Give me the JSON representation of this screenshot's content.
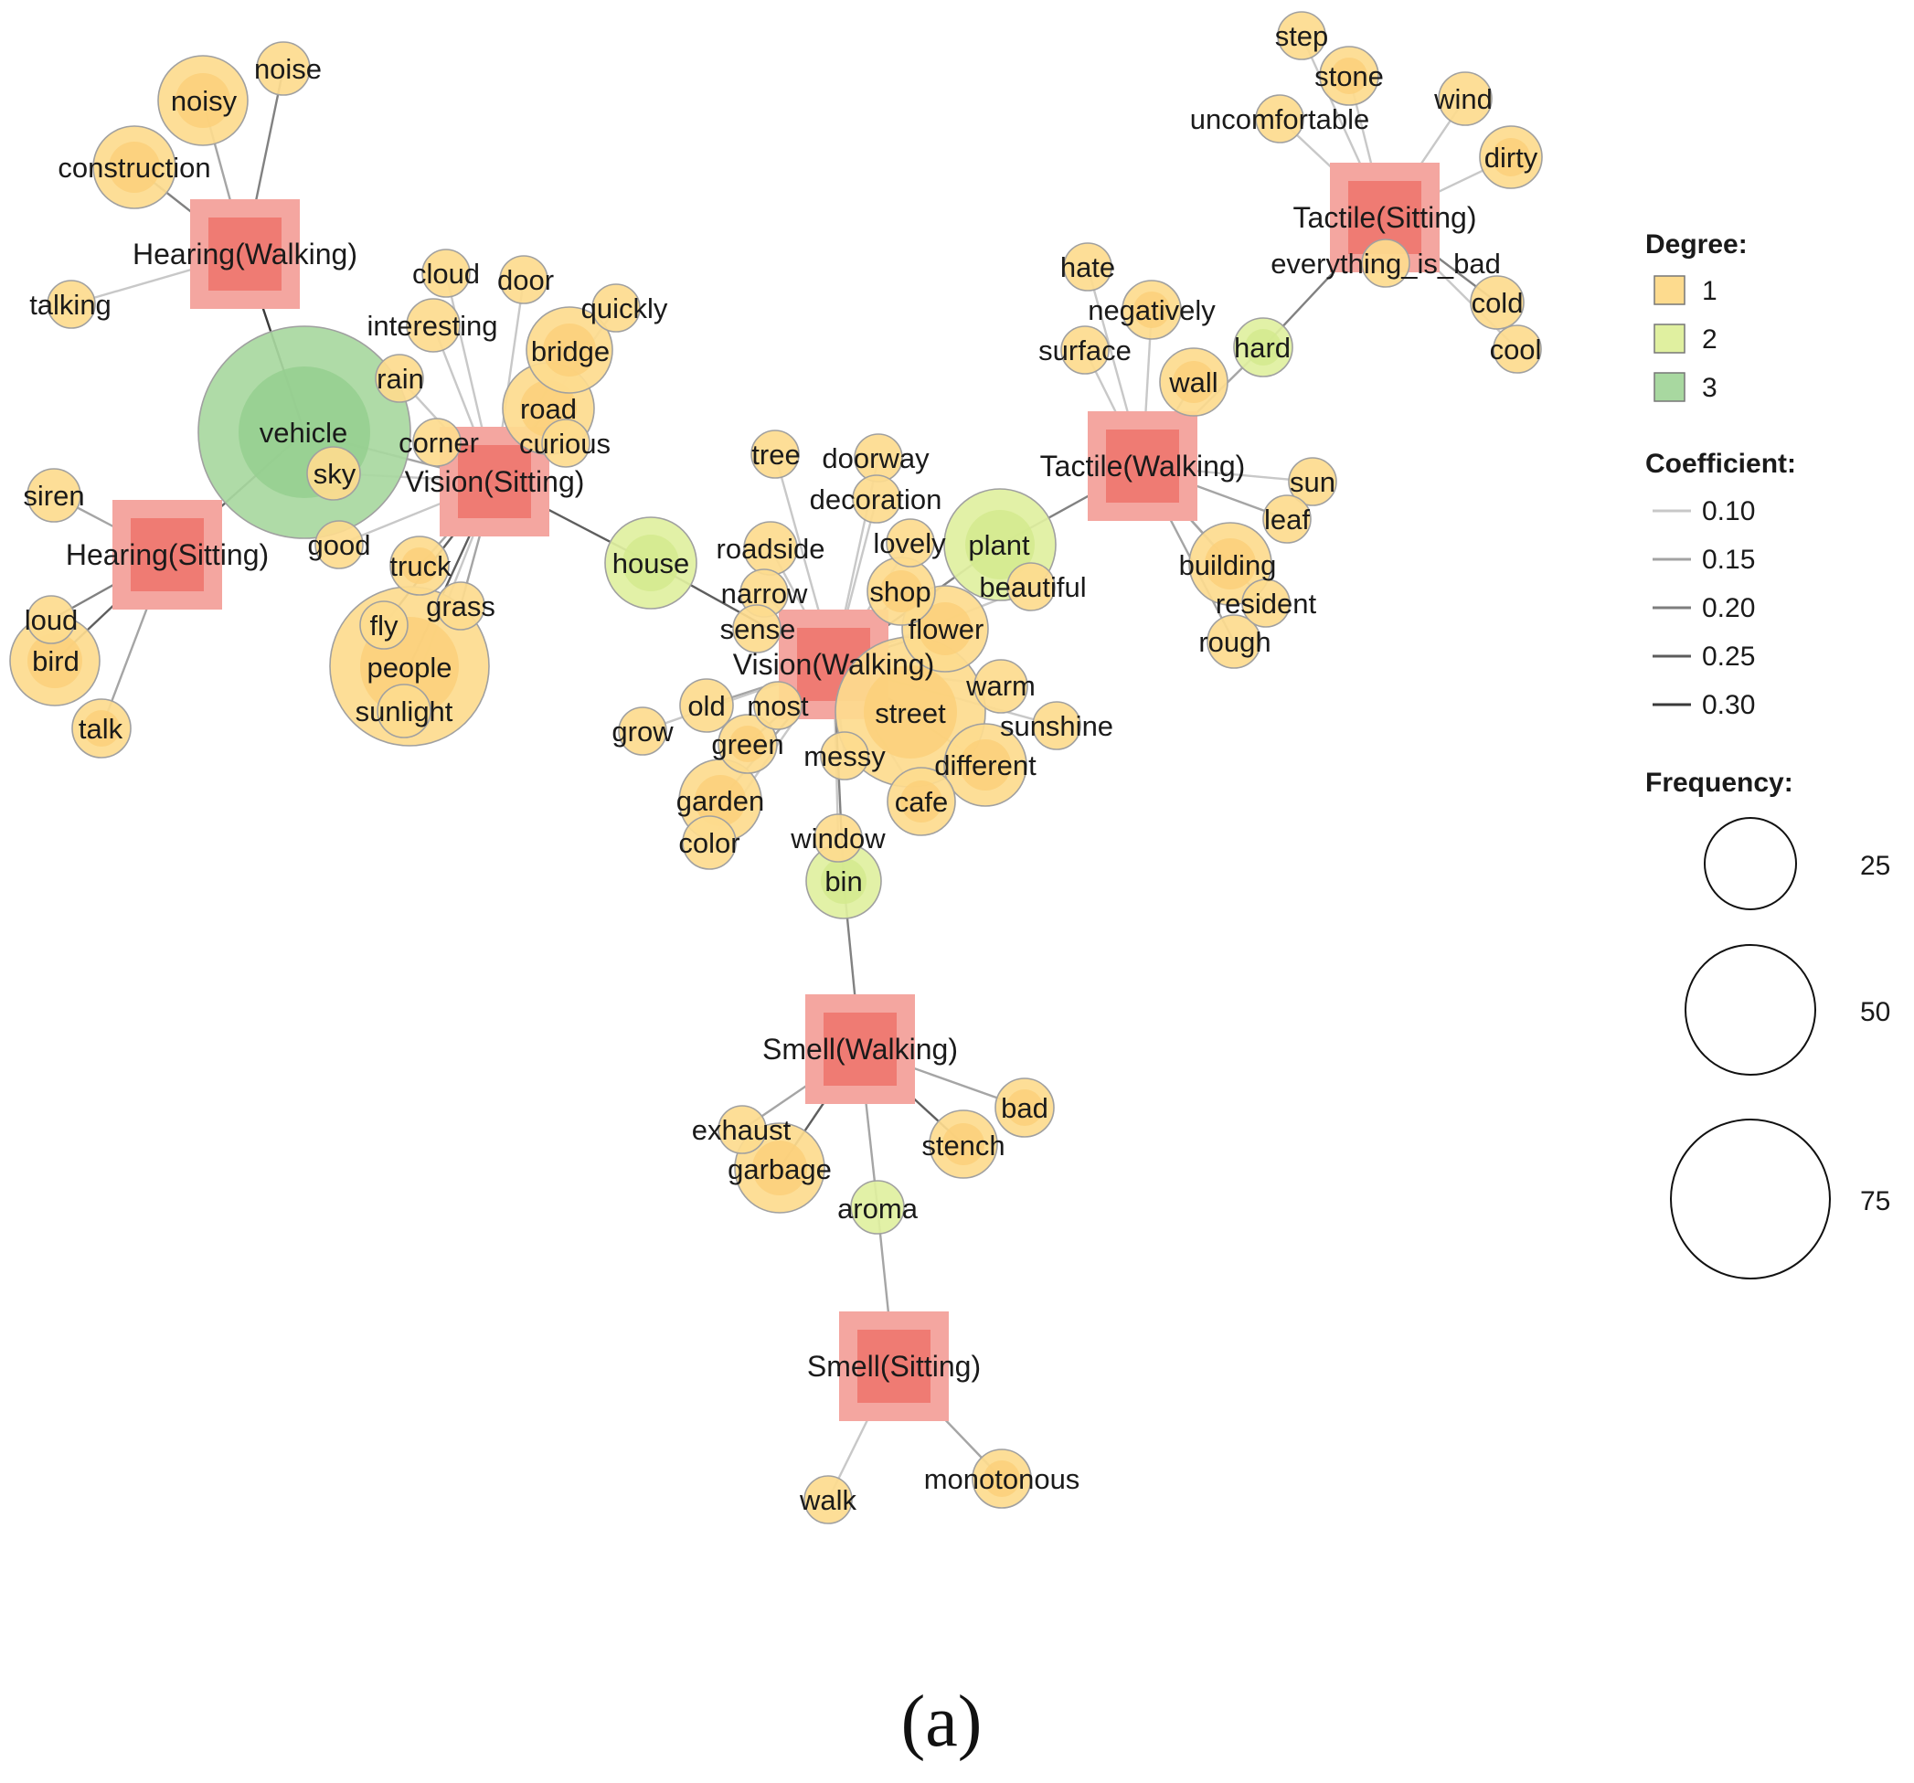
{
  "categories": [
    {
      "id": "hearing_walking",
      "label": "Hearing(Walking)"
    },
    {
      "id": "hearing_sitting",
      "label": "Hearing(Sitting)"
    },
    {
      "id": "vision_sitting",
      "label": "Vision(Sitting)"
    },
    {
      "id": "vision_walking",
      "label": "Vision(Walking)"
    },
    {
      "id": "tactile_walking",
      "label": "Tactile(Walking)"
    },
    {
      "id": "tactile_sitting",
      "label": "Tactile(Sitting)"
    },
    {
      "id": "smell_walking",
      "label": "Smell(Walking)"
    },
    {
      "id": "smell_sitting",
      "label": "Smell(Sitting)"
    }
  ],
  "words": [
    {
      "id": "noise",
      "label": "noise",
      "degree": 1,
      "frequency": 5
    },
    {
      "id": "noisy",
      "label": "noisy",
      "degree": 1,
      "frequency": 14
    },
    {
      "id": "construction",
      "label": "construction",
      "degree": 1,
      "frequency": 12
    },
    {
      "id": "talking",
      "label": "talking",
      "degree": 1,
      "frequency": 4
    },
    {
      "id": "vehicle",
      "label": "vehicle",
      "degree": 3,
      "frequency": 80
    },
    {
      "id": "siren",
      "label": "siren",
      "degree": 1,
      "frequency": 5
    },
    {
      "id": "loud",
      "label": "loud",
      "degree": 1,
      "frequency": 4
    },
    {
      "id": "bird",
      "label": "bird",
      "degree": 1,
      "frequency": 14
    },
    {
      "id": "talk",
      "label": "talk",
      "degree": 1,
      "frequency": 6
    },
    {
      "id": "cloud",
      "label": "cloud",
      "degree": 1,
      "frequency": 4
    },
    {
      "id": "door",
      "label": "door",
      "degree": 1,
      "frequency": 4
    },
    {
      "id": "quickly",
      "label": "quickly",
      "degree": 1,
      "frequency": 4
    },
    {
      "id": "interesting",
      "label": "interesting",
      "degree": 1,
      "frequency": 5
    },
    {
      "id": "bridge",
      "label": "bridge",
      "degree": 1,
      "frequency": 13
    },
    {
      "id": "rain",
      "label": "rain",
      "degree": 1,
      "frequency": 4
    },
    {
      "id": "road",
      "label": "road",
      "degree": 1,
      "frequency": 15
    },
    {
      "id": "corner",
      "label": "corner",
      "degree": 1,
      "frequency": 4
    },
    {
      "id": "curious",
      "label": "curious",
      "degree": 1,
      "frequency": 4
    },
    {
      "id": "sky",
      "label": "sky",
      "degree": 1,
      "frequency": 5
    },
    {
      "id": "good",
      "label": "good",
      "degree": 1,
      "frequency": 4
    },
    {
      "id": "truck",
      "label": "truck",
      "degree": 1,
      "frequency": 6
    },
    {
      "id": "grass",
      "label": "grass",
      "degree": 1,
      "frequency": 4
    },
    {
      "id": "fly",
      "label": "fly",
      "degree": 1,
      "frequency": 4
    },
    {
      "id": "people",
      "label": "people",
      "degree": 1,
      "frequency": 45
    },
    {
      "id": "sunlight",
      "label": "sunlight",
      "degree": 1,
      "frequency": 5
    },
    {
      "id": "house",
      "label": "house",
      "degree": 2,
      "frequency": 15
    },
    {
      "id": "tree",
      "label": "tree",
      "degree": 1,
      "frequency": 4
    },
    {
      "id": "doorway",
      "label": "doorway",
      "degree": 1,
      "frequency": 4
    },
    {
      "id": "decoration",
      "label": "decoration",
      "degree": 1,
      "frequency": 4
    },
    {
      "id": "roadside",
      "label": "roadside",
      "degree": 1,
      "frequency": 5
    },
    {
      "id": "lovely",
      "label": "lovely",
      "degree": 1,
      "frequency": 4
    },
    {
      "id": "plant",
      "label": "plant",
      "degree": 2,
      "frequency": 22
    },
    {
      "id": "narrow",
      "label": "narrow",
      "degree": 1,
      "frequency": 4
    },
    {
      "id": "shop",
      "label": "shop",
      "degree": 1,
      "frequency": 8
    },
    {
      "id": "beautiful",
      "label": "beautiful",
      "degree": 1,
      "frequency": 4
    },
    {
      "id": "sense",
      "label": "sense",
      "degree": 1,
      "frequency": 4
    },
    {
      "id": "flower",
      "label": "flower",
      "degree": 1,
      "frequency": 13
    },
    {
      "id": "warm",
      "label": "warm",
      "degree": 1,
      "frequency": 5
    },
    {
      "id": "old",
      "label": "old",
      "degree": 1,
      "frequency": 5
    },
    {
      "id": "most",
      "label": "most",
      "degree": 1,
      "frequency": 4
    },
    {
      "id": "street",
      "label": "street",
      "degree": 1,
      "frequency": 40
    },
    {
      "id": "sunshine",
      "label": "sunshine",
      "degree": 1,
      "frequency": 4
    },
    {
      "id": "grow",
      "label": "grow",
      "degree": 1,
      "frequency": 4
    },
    {
      "id": "green",
      "label": "green",
      "degree": 1,
      "frequency": 6
    },
    {
      "id": "messy",
      "label": "messy",
      "degree": 1,
      "frequency": 4
    },
    {
      "id": "different",
      "label": "different",
      "degree": 1,
      "frequency": 12
    },
    {
      "id": "garden",
      "label": "garden",
      "degree": 1,
      "frequency": 12
    },
    {
      "id": "cafe",
      "label": "cafe",
      "degree": 1,
      "frequency": 8
    },
    {
      "id": "color",
      "label": "color",
      "degree": 1,
      "frequency": 5
    },
    {
      "id": "window",
      "label": "window",
      "degree": 1,
      "frequency": 4
    },
    {
      "id": "bin",
      "label": "bin",
      "degree": 2,
      "frequency": 10
    },
    {
      "id": "hate",
      "label": "hate",
      "degree": 1,
      "frequency": 4
    },
    {
      "id": "negatively",
      "label": "negatively",
      "degree": 1,
      "frequency": 6
    },
    {
      "id": "surface",
      "label": "surface",
      "degree": 1,
      "frequency": 4
    },
    {
      "id": "hard",
      "label": "hard",
      "degree": 2,
      "frequency": 6
    },
    {
      "id": "wall",
      "label": "wall",
      "degree": 1,
      "frequency": 8
    },
    {
      "id": "sun",
      "label": "sun",
      "degree": 1,
      "frequency": 4
    },
    {
      "id": "leaf",
      "label": "leaf",
      "degree": 1,
      "frequency": 4
    },
    {
      "id": "building",
      "label": "building",
      "degree": 1,
      "frequency": 12
    },
    {
      "id": "resident",
      "label": "resident",
      "degree": 1,
      "frequency": 4
    },
    {
      "id": "rough",
      "label": "rough",
      "degree": 1,
      "frequency": 5
    },
    {
      "id": "step",
      "label": "step",
      "degree": 1,
      "frequency": 4
    },
    {
      "id": "stone",
      "label": "stone",
      "degree": 1,
      "frequency": 6
    },
    {
      "id": "wind",
      "label": "wind",
      "degree": 1,
      "frequency": 5
    },
    {
      "id": "uncomfortable",
      "label": "uncomfortable",
      "degree": 1,
      "frequency": 4
    },
    {
      "id": "dirty",
      "label": "dirty",
      "degree": 1,
      "frequency": 7
    },
    {
      "id": "everything_is_bad",
      "label": "everything_is_bad",
      "degree": 1,
      "frequency": 4
    },
    {
      "id": "cold",
      "label": "cold",
      "degree": 1,
      "frequency": 5
    },
    {
      "id": "cool",
      "label": "cool",
      "degree": 1,
      "frequency": 4
    },
    {
      "id": "exhaust",
      "label": "exhaust",
      "degree": 1,
      "frequency": 4
    },
    {
      "id": "bad",
      "label": "bad",
      "degree": 1,
      "frequency": 6
    },
    {
      "id": "garbage",
      "label": "garbage",
      "degree": 1,
      "frequency": 14
    },
    {
      "id": "stench",
      "label": "stench",
      "degree": 1,
      "frequency": 8
    },
    {
      "id": "aroma",
      "label": "aroma",
      "degree": 2,
      "frequency": 5
    },
    {
      "id": "walk",
      "label": "walk",
      "degree": 1,
      "frequency": 4
    },
    {
      "id": "monotonous",
      "label": "monotonous",
      "degree": 1,
      "frequency": 6
    }
  ],
  "edges": [
    {
      "source": "hearing_walking",
      "target": "noise",
      "coefficient": 0.2
    },
    {
      "source": "hearing_walking",
      "target": "noisy",
      "coefficient": 0.15
    },
    {
      "source": "hearing_walking",
      "target": "construction",
      "coefficient": 0.2
    },
    {
      "source": "hearing_walking",
      "target": "talking",
      "coefficient": 0.1
    },
    {
      "source": "hearing_walking",
      "target": "vehicle",
      "coefficient": 0.3
    },
    {
      "source": "hearing_sitting",
      "target": "vehicle",
      "coefficient": 0.25
    },
    {
      "source": "hearing_sitting",
      "target": "siren",
      "coefficient": 0.15
    },
    {
      "source": "hearing_sitting",
      "target": "loud",
      "coefficient": 0.2
    },
    {
      "source": "hearing_sitting",
      "target": "bird",
      "coefficient": 0.25
    },
    {
      "source": "hearing_sitting",
      "target": "talk",
      "coefficient": 0.15
    },
    {
      "source": "vision_sitting",
      "target": "vehicle",
      "coefficient": 0.15
    },
    {
      "source": "vision_sitting",
      "target": "cloud",
      "coefficient": 0.1
    },
    {
      "source": "vision_sitting",
      "target": "door",
      "coefficient": 0.1
    },
    {
      "source": "vision_sitting",
      "target": "quickly",
      "coefficient": 0.1
    },
    {
      "source": "vision_sitting",
      "target": "interesting",
      "coefficient": 0.1
    },
    {
      "source": "vision_sitting",
      "target": "bridge",
      "coefficient": 0.1
    },
    {
      "source": "vision_sitting",
      "target": "rain",
      "coefficient": 0.1
    },
    {
      "source": "vision_sitting",
      "target": "road",
      "coefficient": 0.15
    },
    {
      "source": "vision_sitting",
      "target": "corner",
      "coefficient": 0.1
    },
    {
      "source": "vision_sitting",
      "target": "curious",
      "coefficient": 0.1
    },
    {
      "source": "vision_sitting",
      "target": "sky",
      "coefficient": 0.1
    },
    {
      "source": "vision_sitting",
      "target": "good",
      "coefficient": 0.1
    },
    {
      "source": "vision_sitting",
      "target": "truck",
      "coefficient": 0.15
    },
    {
      "source": "vision_sitting",
      "target": "grass",
      "coefficient": 0.15
    },
    {
      "source": "vision_sitting",
      "target": "fly",
      "coefficient": 0.25
    },
    {
      "source": "vision_sitting",
      "target": "people",
      "coefficient": 0.25
    },
    {
      "source": "vision_sitting",
      "target": "sunlight",
      "coefficient": 0.1
    },
    {
      "source": "vision_sitting",
      "target": "house",
      "coefficient": 0.25
    },
    {
      "source": "vision_walking",
      "target": "house",
      "coefficient": 0.25
    },
    {
      "source": "vision_walking",
      "target": "tree",
      "coefficient": 0.1
    },
    {
      "source": "vision_walking",
      "target": "doorway",
      "coefficient": 0.1
    },
    {
      "source": "vision_walking",
      "target": "decoration",
      "coefficient": 0.1
    },
    {
      "source": "vision_walking",
      "target": "roadside",
      "coefficient": 0.1
    },
    {
      "source": "vision_walking",
      "target": "lovely",
      "coefficient": 0.1
    },
    {
      "source": "vision_walking",
      "target": "plant",
      "coefficient": 0.2
    },
    {
      "source": "vision_walking",
      "target": "narrow",
      "coefficient": 0.1
    },
    {
      "source": "vision_walking",
      "target": "shop",
      "coefficient": 0.15
    },
    {
      "source": "vision_walking",
      "target": "beautiful",
      "coefficient": 0.1
    },
    {
      "source": "vision_walking",
      "target": "sense",
      "coefficient": 0.1
    },
    {
      "source": "vision_walking",
      "target": "flower",
      "coefficient": 0.15
    },
    {
      "source": "vision_walking",
      "target": "warm",
      "coefficient": 0.1
    },
    {
      "source": "vision_walking",
      "target": "old",
      "coefficient": 0.15
    },
    {
      "source": "vision_walking",
      "target": "most",
      "coefficient": 0.1
    },
    {
      "source": "vision_walking",
      "target": "street",
      "coefficient": 0.25
    },
    {
      "source": "vision_walking",
      "target": "sunshine",
      "coefficient": 0.1
    },
    {
      "source": "vision_walking",
      "target": "grow",
      "coefficient": 0.1
    },
    {
      "source": "vision_walking",
      "target": "green",
      "coefficient": 0.15
    },
    {
      "source": "vision_walking",
      "target": "messy",
      "coefficient": 0.1
    },
    {
      "source": "vision_walking",
      "target": "different",
      "coefficient": 0.15
    },
    {
      "source": "vision_walking",
      "target": "garden",
      "coefficient": 0.15
    },
    {
      "source": "vision_walking",
      "target": "cafe",
      "coefficient": 0.1
    },
    {
      "source": "vision_walking",
      "target": "color",
      "coefficient": 0.1
    },
    {
      "source": "vision_walking",
      "target": "window",
      "coefficient": 0.1
    },
    {
      "source": "vision_walking",
      "target": "bin",
      "coefficient": 0.2
    },
    {
      "source": "tactile_walking",
      "target": "plant",
      "coefficient": 0.2
    },
    {
      "source": "tactile_walking",
      "target": "hate",
      "coefficient": 0.1
    },
    {
      "source": "tactile_walking",
      "target": "negatively",
      "coefficient": 0.1
    },
    {
      "source": "tactile_walking",
      "target": "surface",
      "coefficient": 0.1
    },
    {
      "source": "tactile_walking",
      "target": "hard",
      "coefficient": 0.15
    },
    {
      "source": "tactile_walking",
      "target": "wall",
      "coefficient": 0.15
    },
    {
      "source": "tactile_walking",
      "target": "sun",
      "coefficient": 0.1
    },
    {
      "source": "tactile_walking",
      "target": "leaf",
      "coefficient": 0.15
    },
    {
      "source": "tactile_walking",
      "target": "building",
      "coefficient": 0.2
    },
    {
      "source": "tactile_walking",
      "target": "resident",
      "coefficient": 0.15
    },
    {
      "source": "tactile_walking",
      "target": "rough",
      "coefficient": 0.15
    },
    {
      "source": "tactile_sitting",
      "target": "hard",
      "coefficient": 0.2
    },
    {
      "source": "tactile_sitting",
      "target": "step",
      "coefficient": 0.1
    },
    {
      "source": "tactile_sitting",
      "target": "stone",
      "coefficient": 0.1
    },
    {
      "source": "tactile_sitting",
      "target": "wind",
      "coefficient": 0.1
    },
    {
      "source": "tactile_sitting",
      "target": "uncomfortable",
      "coefficient": 0.1
    },
    {
      "source": "tactile_sitting",
      "target": "dirty",
      "coefficient": 0.1
    },
    {
      "source": "tactile_sitting",
      "target": "everything_is_bad",
      "coefficient": 0.15
    },
    {
      "source": "tactile_sitting",
      "target": "cold",
      "coefficient": 0.2
    },
    {
      "source": "tactile_sitting",
      "target": "cool",
      "coefficient": 0.1
    },
    {
      "source": "smell_walking",
      "target": "bin",
      "coefficient": 0.2
    },
    {
      "source": "smell_walking",
      "target": "exhaust",
      "coefficient": 0.15
    },
    {
      "source": "smell_walking",
      "target": "bad",
      "coefficient": 0.15
    },
    {
      "source": "smell_walking",
      "target": "garbage",
      "coefficient": 0.25
    },
    {
      "source": "smell_walking",
      "target": "stench",
      "coefficient": 0.25
    },
    {
      "source": "smell_walking",
      "target": "aroma",
      "coefficient": 0.15
    },
    {
      "source": "smell_sitting",
      "target": "aroma",
      "coefficient": 0.15
    },
    {
      "source": "smell_sitting",
      "target": "walk",
      "coefficient": 0.1
    },
    {
      "source": "smell_sitting",
      "target": "monotonous",
      "coefficient": 0.15
    }
  ],
  "legend": {
    "degree_title": "Degree:",
    "degree_items": [
      {
        "label": "1",
        "color": "#fddb8e"
      },
      {
        "label": "2",
        "color": "#e0f0a0"
      },
      {
        "label": "3",
        "color": "#a8d8a0"
      }
    ],
    "coefficient_title": "Coefficient:",
    "coefficient_items": [
      {
        "label": "0.10",
        "value": 0.1
      },
      {
        "label": "0.15",
        "value": 0.15
      },
      {
        "label": "0.20",
        "value": 0.2
      },
      {
        "label": "0.25",
        "value": 0.25
      },
      {
        "label": "0.30",
        "value": 0.3
      }
    ],
    "frequency_title": "Frequency:",
    "frequency_items": [
      {
        "label": "25",
        "value": 25
      },
      {
        "label": "50",
        "value": 50
      },
      {
        "label": "75",
        "value": 75
      }
    ]
  },
  "colors": {
    "category_outer": "#f4a6a0",
    "category_inner": "#ef7b73",
    "degree_1_fill": "#fddb8e",
    "degree_2_fill": "#e0f0a0",
    "degree_3_fill": "#a8d8a0",
    "edge_light": "#c8c8c8",
    "edge_dark": "#3a3a3a"
  },
  "caption": "(a)"
}
